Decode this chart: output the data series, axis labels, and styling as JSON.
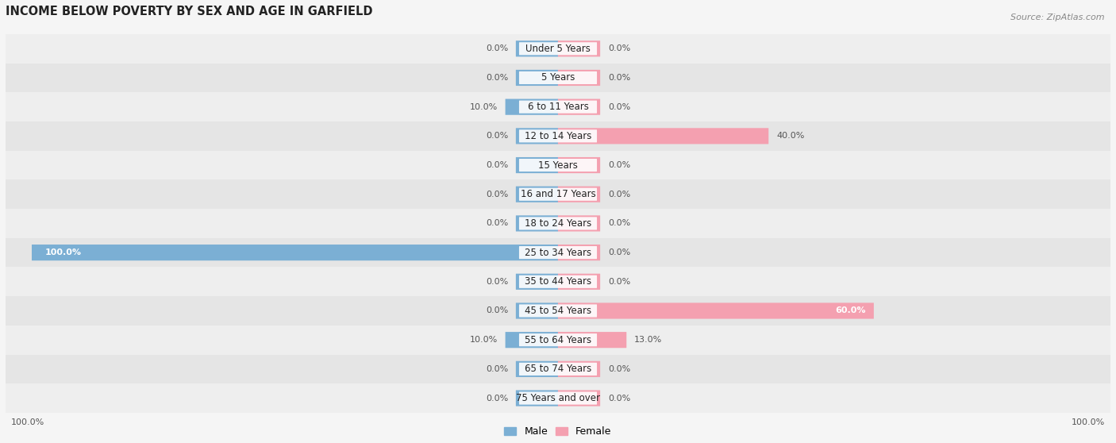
{
  "title": "INCOME BELOW POVERTY BY SEX AND AGE IN GARFIELD",
  "source": "Source: ZipAtlas.com",
  "categories": [
    "Under 5 Years",
    "5 Years",
    "6 to 11 Years",
    "12 to 14 Years",
    "15 Years",
    "16 and 17 Years",
    "18 to 24 Years",
    "25 to 34 Years",
    "35 to 44 Years",
    "45 to 54 Years",
    "55 to 64 Years",
    "65 to 74 Years",
    "75 Years and over"
  ],
  "male": [
    0.0,
    0.0,
    10.0,
    0.0,
    0.0,
    0.0,
    0.0,
    100.0,
    0.0,
    0.0,
    10.0,
    0.0,
    0.0
  ],
  "female": [
    0.0,
    0.0,
    0.0,
    40.0,
    0.0,
    0.0,
    0.0,
    0.0,
    0.0,
    60.0,
    13.0,
    0.0,
    0.0
  ],
  "male_color": "#7bafd4",
  "female_color": "#f4a0b0",
  "text_color": "#555555",
  "white": "#ffffff",
  "background_color": "#f5f5f5",
  "row_light": "#efefef",
  "row_dark": "#e8e8e8",
  "max_val": 100.0,
  "bar_height": 0.52,
  "stub": 8.0,
  "figsize": [
    14.06,
    5.58
  ],
  "dpi": 100,
  "title_fontsize": 10.5,
  "label_fontsize": 8.5,
  "value_fontsize": 8.0,
  "legend_fontsize": 9,
  "xlim": 100.0
}
